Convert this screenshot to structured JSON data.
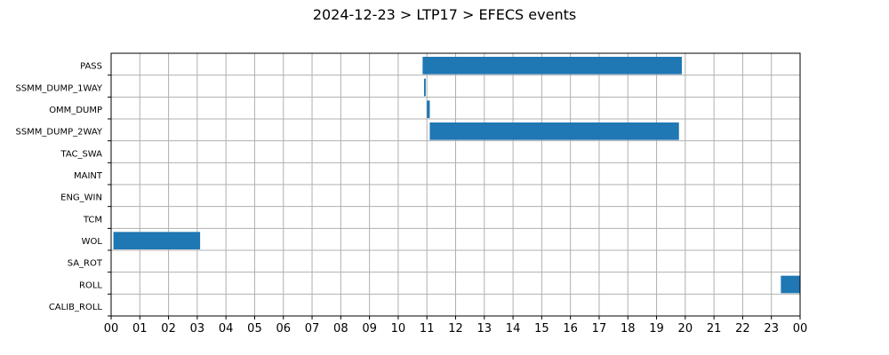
{
  "chart_data": {
    "type": "bar",
    "orientation": "horizontal",
    "title": "2024-12-23 > LTP17 > EFECS events",
    "xlabel": "",
    "ylabel": "",
    "x_unit": "hours",
    "xlim": [
      0,
      24
    ],
    "x_tick_labels": [
      "00",
      "01",
      "02",
      "03",
      "04",
      "05",
      "06",
      "07",
      "08",
      "09",
      "10",
      "11",
      "12",
      "13",
      "14",
      "15",
      "16",
      "17",
      "18",
      "19",
      "20",
      "21",
      "22",
      "23",
      "00"
    ],
    "categories": [
      "PASS",
      "SSMM_DUMP_1WAY",
      "OMM_DUMP",
      "SSMM_DUMP_2WAY",
      "TAC_SWA",
      "MAINT",
      "ENG_WIN",
      "TCM",
      "WOL",
      "SA_ROT",
      "ROLL",
      "CALIB_ROLL"
    ],
    "grid": true,
    "legend": "none",
    "bar_color": "#1f77b4",
    "events": [
      {
        "category": "PASS",
        "start": 10.85,
        "end": 19.88
      },
      {
        "category": "SSMM_DUMP_1WAY",
        "start": 10.9,
        "end": 10.96
      },
      {
        "category": "OMM_DUMP",
        "start": 11.0,
        "end": 11.1
      },
      {
        "category": "SSMM_DUMP_2WAY",
        "start": 11.1,
        "end": 19.78
      },
      {
        "category": "WOL",
        "start": 0.08,
        "end": 3.1
      },
      {
        "category": "ROLL",
        "start": 23.33,
        "end": 24.0
      }
    ]
  }
}
